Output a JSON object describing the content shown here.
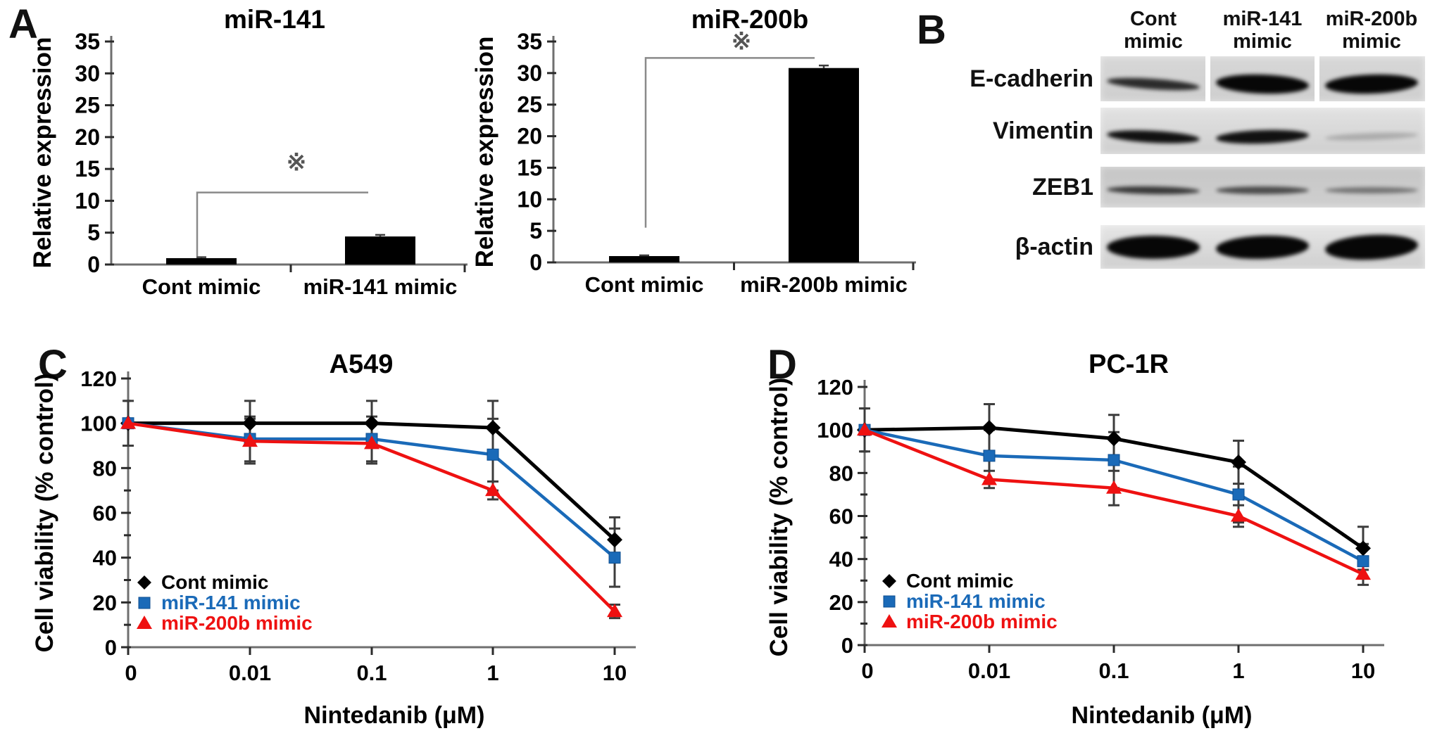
{
  "panels": {
    "a": "A",
    "b": "B",
    "c": "C",
    "d": "D"
  },
  "chart_data": [
    {
      "id": "bar-mir141",
      "panel": "A",
      "type": "bar",
      "title": "miR-141",
      "ylabel": "Relative expression",
      "categories": [
        "Cont mimic",
        "miR-141 mimic"
      ],
      "values": [
        1.0,
        4.4
      ],
      "errors": [
        0.15,
        0.25
      ],
      "ylim": [
        0,
        35
      ],
      "ytick_step": 5,
      "bar_color": "#000000",
      "significance": {
        "symbol": "※",
        "bracket_y": 11.3,
        "drop_to": 1.3,
        "symbol_y": 14.8
      }
    },
    {
      "id": "bar-mir200b",
      "panel": "A",
      "type": "bar",
      "title": "miR-200b",
      "ylabel": "Relative expression",
      "categories": [
        "Cont mimic",
        "miR-200b mimic"
      ],
      "values": [
        1.0,
        30.8
      ],
      "errors": [
        0.12,
        0.4
      ],
      "ylim": [
        0,
        35
      ],
      "ytick_step": 5,
      "bar_color": "#000000",
      "significance": {
        "symbol": "※",
        "bracket_y": 32.4,
        "drop_to": 5.5,
        "symbol_y": 33.8
      }
    },
    {
      "id": "line-a549",
      "panel": "C",
      "type": "line",
      "title": "A549",
      "xlabel": "Nintedanib (μM)",
      "ylabel": "Cell viability (% control)",
      "categories": [
        "0",
        "0.01",
        "0.1",
        "1",
        "10"
      ],
      "ylim": [
        0,
        120
      ],
      "ytick_step": 20,
      "yminor_step": 10,
      "grid": false,
      "legend_position": "lower-left",
      "series": [
        {
          "name": "Cont mimic",
          "color": "#000000",
          "marker": "diamond",
          "values": [
            100,
            100,
            100,
            98,
            48
          ],
          "errors": [
            10,
            10,
            10,
            12,
            10
          ]
        },
        {
          "name": "miR-141 mimic",
          "color": "#1a6ab8",
          "marker": "square",
          "values": [
            100,
            93,
            93,
            86,
            40
          ],
          "errors": [
            0,
            10,
            10,
            16,
            13
          ]
        },
        {
          "name": "miR-200b mimic",
          "color": "#ee1111",
          "marker": "triangle",
          "values": [
            100,
            92,
            91,
            70,
            16
          ],
          "errors": [
            0,
            10,
            9,
            4,
            3
          ]
        }
      ]
    },
    {
      "id": "line-pc1r",
      "panel": "D",
      "type": "line",
      "title": "PC-1R",
      "xlabel": "Nintedanib (μM)",
      "ylabel": "Cell viability (% control)",
      "categories": [
        "0",
        "0.01",
        "0.1",
        "1",
        "10"
      ],
      "ylim": [
        0,
        120
      ],
      "ytick_step": 20,
      "yminor_step": 10,
      "grid": false,
      "legend_position": "lower-left",
      "series": [
        {
          "name": "Cont mimic",
          "color": "#000000",
          "marker": "diamond",
          "values": [
            100,
            101,
            96,
            85,
            45
          ],
          "errors": [
            10,
            11,
            11,
            10,
            10
          ]
        },
        {
          "name": "miR-141 mimic",
          "color": "#1a6ab8",
          "marker": "square",
          "values": [
            100,
            88,
            86,
            70,
            39
          ],
          "errors": [
            0,
            12,
            13,
            13,
            8
          ]
        },
        {
          "name": "miR-200b mimic",
          "color": "#ee1111",
          "marker": "triangle",
          "values": [
            100,
            77,
            73,
            60,
            33
          ],
          "errors": [
            0,
            4,
            8,
            5,
            5
          ]
        }
      ]
    }
  ],
  "western_blot": {
    "lane_headers": [
      [
        "Cont",
        "mimic"
      ],
      [
        "miR-141",
        "mimic"
      ],
      [
        "miR-200b",
        "mimic"
      ]
    ],
    "rows": [
      {
        "label": "E-cadherin",
        "background": "#d7d7d7",
        "separated_lanes": true,
        "bands": [
          {
            "intensity": 0.82,
            "thickness": 15,
            "tilt": 4
          },
          {
            "intensity": 1,
            "thickness": 27,
            "tilt": 2
          },
          {
            "intensity": 1,
            "thickness": 27,
            "tilt": -2
          }
        ]
      },
      {
        "label": "Vimentin",
        "background": "#e2e2e2",
        "separated_lanes": false,
        "bands": [
          {
            "intensity": 0.95,
            "thickness": 17,
            "tilt": 3
          },
          {
            "intensity": 0.95,
            "thickness": 19,
            "tilt": -2
          },
          {
            "intensity": 0.2,
            "thickness": 10,
            "tilt": -2
          }
        ]
      },
      {
        "label": "ZEB1",
        "background": "#c6c6c6",
        "separated_lanes": false,
        "bands": [
          {
            "intensity": 0.75,
            "thickness": 11,
            "tilt": 1
          },
          {
            "intensity": 0.65,
            "thickness": 11,
            "tilt": 0
          },
          {
            "intensity": 0.45,
            "thickness": 9,
            "tilt": 0
          }
        ]
      },
      {
        "label": "β-actin",
        "background": "#e6e6e6",
        "separated_lanes": false,
        "bands": [
          {
            "intensity": 1,
            "thickness": 33,
            "tilt": 0
          },
          {
            "intensity": 1,
            "thickness": 33,
            "tilt": -2
          },
          {
            "intensity": 1,
            "thickness": 35,
            "tilt": -3
          }
        ]
      }
    ]
  }
}
